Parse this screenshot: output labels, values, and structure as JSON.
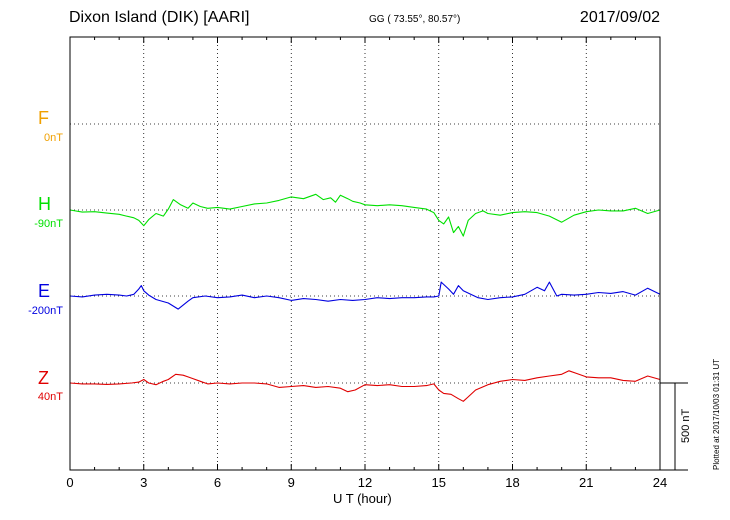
{
  "header": {
    "station": "Dixon Island (DIK)  [AARI]",
    "coords": "GG ( 73.55°,  80.57°)",
    "date": "2017/09/02"
  },
  "scale_label": "500 nT",
  "plotted_note": "Plotted at 2017/10/03 01:31  UT",
  "colors": {
    "F": "#f0a000",
    "H": "#00e000",
    "E": "#0000e0",
    "Z": "#e00000",
    "grid": "#000000"
  },
  "chart_data": {
    "type": "line",
    "xlabel": "U T (hour)",
    "xlim": [
      0,
      24
    ],
    "x_ticks": [
      0,
      3,
      6,
      9,
      12,
      15,
      18,
      21,
      24
    ],
    "grid": true,
    "scale_bar_nT": 500,
    "series": [
      {
        "name": "F",
        "baseline_label": "0nT",
        "baseline_nT": 0,
        "offset": 0,
        "x": [],
        "y": []
      },
      {
        "name": "H",
        "baseline_label": "-90nT",
        "baseline_nT": -90,
        "offset": 0,
        "x": [
          0,
          0.5,
          1,
          1.5,
          2,
          2.3,
          2.6,
          2.8,
          3.0,
          3.2,
          3.5,
          3.8,
          4.0,
          4.2,
          4.5,
          4.8,
          5.0,
          5.3,
          5.6,
          6.0,
          6.5,
          7.0,
          7.5,
          8.0,
          8.5,
          9.0,
          9.5,
          10.0,
          10.3,
          10.6,
          10.8,
          11.0,
          11.3,
          11.5,
          11.8,
          12.0,
          12.5,
          13.0,
          13.5,
          14.0,
          14.5,
          14.8,
          15.0,
          15.2,
          15.4,
          15.6,
          15.8,
          16.0,
          16.2,
          16.5,
          16.8,
          17.0,
          17.5,
          18.0,
          18.5,
          19.0,
          19.5,
          20.0,
          20.5,
          21.0,
          21.5,
          22.0,
          22.5,
          23.0,
          23.5,
          24.0
        ],
        "y": [
          0,
          -12,
          -10,
          -18,
          -25,
          -35,
          -45,
          -60,
          -90,
          -55,
          -20,
          -35,
          5,
          60,
          30,
          10,
          40,
          20,
          10,
          15,
          5,
          20,
          35,
          40,
          55,
          75,
          65,
          90,
          60,
          70,
          45,
          85,
          65,
          50,
          40,
          30,
          25,
          30,
          25,
          15,
          5,
          -15,
          -60,
          -80,
          -40,
          -130,
          -95,
          -150,
          -60,
          -20,
          -5,
          -20,
          -30,
          -15,
          -10,
          -15,
          -35,
          -70,
          -30,
          -10,
          0,
          -5,
          -5,
          10,
          -20,
          0
        ]
      },
      {
        "name": "E",
        "baseline_label": "-200nT",
        "baseline_nT": -200,
        "offset": 0,
        "x": [
          0,
          0.5,
          1,
          1.5,
          2,
          2.3,
          2.6,
          2.8,
          2.9,
          3.0,
          3.2,
          3.5,
          4.0,
          4.4,
          4.8,
          5.0,
          5.5,
          6.0,
          6.5,
          7.0,
          7.5,
          8.0,
          8.5,
          9.0,
          9.5,
          10.0,
          10.5,
          11.0,
          11.5,
          12.0,
          12.5,
          13.0,
          13.5,
          14.0,
          14.5,
          14.8,
          15.0,
          15.1,
          15.4,
          15.6,
          15.8,
          16.0,
          16.3,
          16.6,
          17.0,
          17.5,
          18.0,
          18.5,
          19.0,
          19.3,
          19.5,
          19.8,
          20.0,
          20.5,
          21.0,
          21.5,
          22.0,
          22.5,
          23.0,
          23.5,
          24.0
        ],
        "y": [
          0,
          -5,
          5,
          10,
          5,
          0,
          10,
          40,
          60,
          30,
          5,
          -20,
          -40,
          -75,
          -30,
          -10,
          0,
          -10,
          -5,
          5,
          -10,
          0,
          -10,
          -25,
          -15,
          -20,
          -30,
          -20,
          -25,
          -20,
          -10,
          -15,
          -10,
          -10,
          -5,
          -5,
          0,
          80,
          40,
          10,
          60,
          30,
          10,
          -10,
          -20,
          -10,
          -5,
          10,
          50,
          30,
          80,
          0,
          10,
          5,
          10,
          20,
          15,
          25,
          5,
          45,
          10
        ]
      },
      {
        "name": "Z",
        "baseline_label": "40nT",
        "baseline_nT": 40,
        "offset": 0,
        "x": [
          0,
          0.5,
          1,
          1.5,
          2,
          2.5,
          2.8,
          3.0,
          3.2,
          3.5,
          3.8,
          4.0,
          4.3,
          4.6,
          4.8,
          5.0,
          5.3,
          5.6,
          6.0,
          6.5,
          7.0,
          7.5,
          8.0,
          8.5,
          9.0,
          9.5,
          10.0,
          10.5,
          11.0,
          11.3,
          11.6,
          12.0,
          12.5,
          13.0,
          13.5,
          14.0,
          14.5,
          14.8,
          15.0,
          15.2,
          15.5,
          15.8,
          16.0,
          16.2,
          16.5,
          17.0,
          17.5,
          18.0,
          18.5,
          19.0,
          19.5,
          20.0,
          20.3,
          20.6,
          21.0,
          21.5,
          22.0,
          22.5,
          23.0,
          23.5,
          24.0
        ],
        "y": [
          0,
          -5,
          -5,
          -8,
          -5,
          0,
          5,
          20,
          0,
          -10,
          10,
          20,
          50,
          45,
          35,
          25,
          10,
          -5,
          0,
          -5,
          0,
          0,
          -5,
          -25,
          -20,
          -15,
          -25,
          -20,
          -30,
          -50,
          -40,
          -10,
          -15,
          -10,
          -20,
          -20,
          -15,
          -5,
          -40,
          -60,
          -65,
          -90,
          -105,
          -80,
          -40,
          -10,
          10,
          20,
          15,
          30,
          40,
          50,
          70,
          55,
          35,
          30,
          30,
          15,
          10,
          40,
          20
        ]
      }
    ]
  }
}
